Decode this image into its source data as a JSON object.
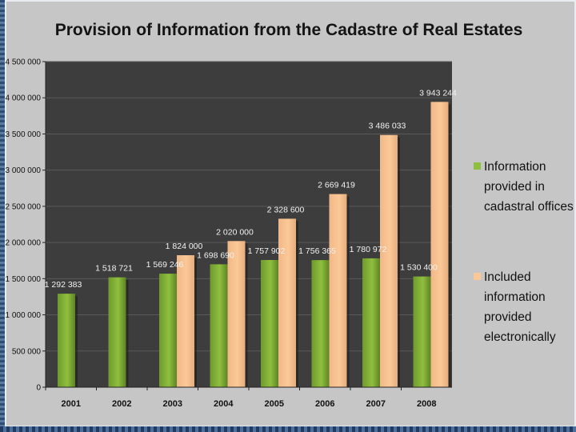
{
  "chart_data": {
    "type": "bar",
    "title": "Provision of Information from the Cadastre of Real Estates",
    "categories": [
      "2001",
      "2002",
      "2003",
      "2004",
      "2005",
      "2006",
      "2007",
      "2008"
    ],
    "series": [
      {
        "name": "Information provided in cadastral offices",
        "legend_lines": [
          "Information",
          "provided in",
          "cadastral offices"
        ],
        "color": "#8fbf3f",
        "values": [
          1292383,
          1518721,
          1569246,
          1698690,
          1757902,
          1756365,
          1780972,
          1530400
        ],
        "labels": [
          "1 292 383",
          "1 518 721",
          "1 569 246",
          "1 698 690",
          "1 757 902",
          "1 756 365",
          "1 780 972",
          "1 530 400"
        ]
      },
      {
        "name": "Included information provided electronically",
        "legend_lines": [
          "Included",
          "information",
          "provided",
          "electronically"
        ],
        "color": "#fcc898",
        "values": [
          null,
          null,
          1824000,
          2020000,
          2328600,
          2669419,
          3486033,
          3943244
        ],
        "labels": [
          null,
          null,
          "1 824 000",
          "2 020 000",
          "2 328 600",
          "2 669 419",
          "3 486 033",
          "3 943 244"
        ]
      }
    ],
    "ylim": [
      0,
      4500000
    ],
    "yticks": [
      0,
      500000,
      1000000,
      1500000,
      2000000,
      2500000,
      3000000,
      3500000,
      4000000,
      4500000
    ],
    "ytick_labels": [
      "0",
      "500 000",
      "1 000 000",
      "1 500 000",
      "2 000 000",
      "2 500 000",
      "3 000 000",
      "3 500 000",
      "4 000 000",
      "4 500 000"
    ],
    "xlabel": "",
    "ylabel": "",
    "grid": true,
    "legend_position": "right"
  },
  "colors": {
    "plot_background": "#3d3d3d",
    "chart_background": "#c6c6c6"
  }
}
